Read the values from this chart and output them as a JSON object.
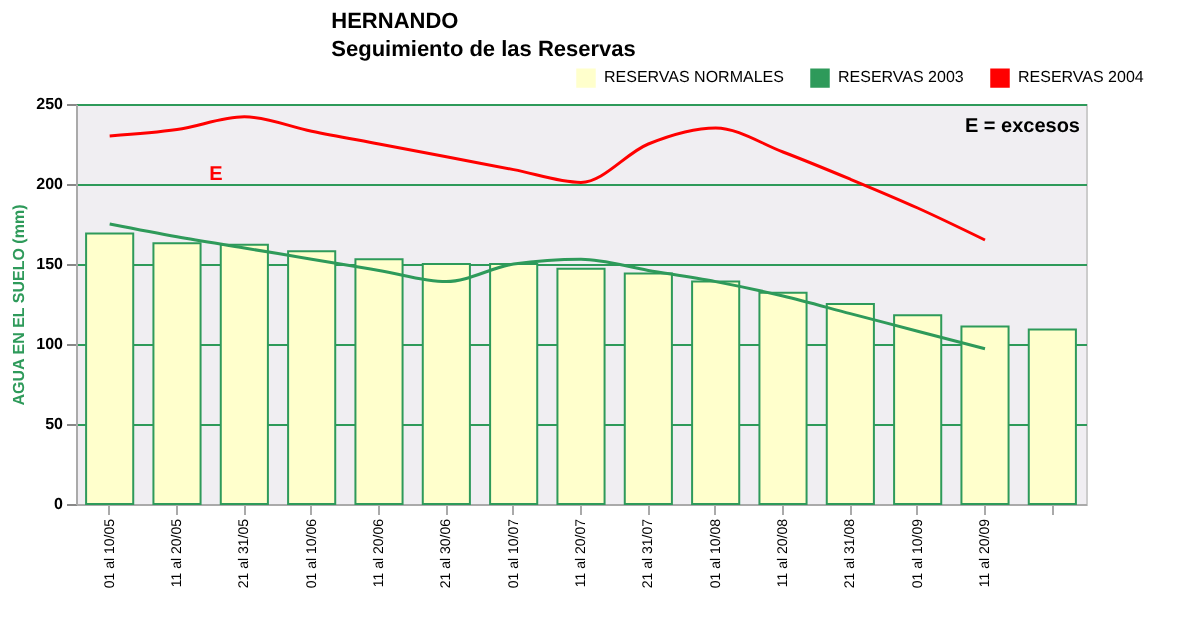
{
  "chart_data": {
    "type": "bar",
    "title": "HERNANDO",
    "subtitle": "Seguimiento de las Reservas",
    "ylabel": "AGUA EN EL SUELO (mm)",
    "categories": [
      "01 al 10/05",
      "11 al 20/05",
      "21 al 31/05",
      "01 al 10/06",
      "11 al 20/06",
      "21 al 30/06",
      "01 al 10/07",
      "11 al 20/07",
      "21 al 31/07",
      "01 al 10/08",
      "11 al 20/08",
      "21 al 31/08",
      "01 al 10/09",
      "11 al 20/09",
      null
    ],
    "series": [
      {
        "name": "RESERVAS NORMALES",
        "color": "#ffffcc",
        "values": [
          169,
          163,
          162,
          158,
          153,
          150,
          150,
          147,
          144,
          139,
          132,
          125,
          118,
          111,
          109
        ]
      },
      {
        "name": "RESERVAS 2003",
        "type": "line",
        "color": "#2e9a5a",
        "values": [
          175,
          167,
          160,
          153,
          146,
          139,
          150,
          153,
          146,
          139,
          130,
          119,
          108,
          97,
          null
        ]
      },
      {
        "name": "RESERVAS 2004",
        "type": "line",
        "color": "#ff0000",
        "values": [
          230,
          234,
          242,
          233,
          225,
          217,
          209,
          201,
          225,
          235,
          220,
          203,
          185,
          165,
          null
        ]
      }
    ],
    "ylim": [
      0,
      250
    ],
    "yticks": [
      0,
      50,
      100,
      150,
      200,
      250
    ],
    "grid": "y",
    "legend": "top",
    "annotations": [
      "E = excesos",
      "E"
    ]
  }
}
